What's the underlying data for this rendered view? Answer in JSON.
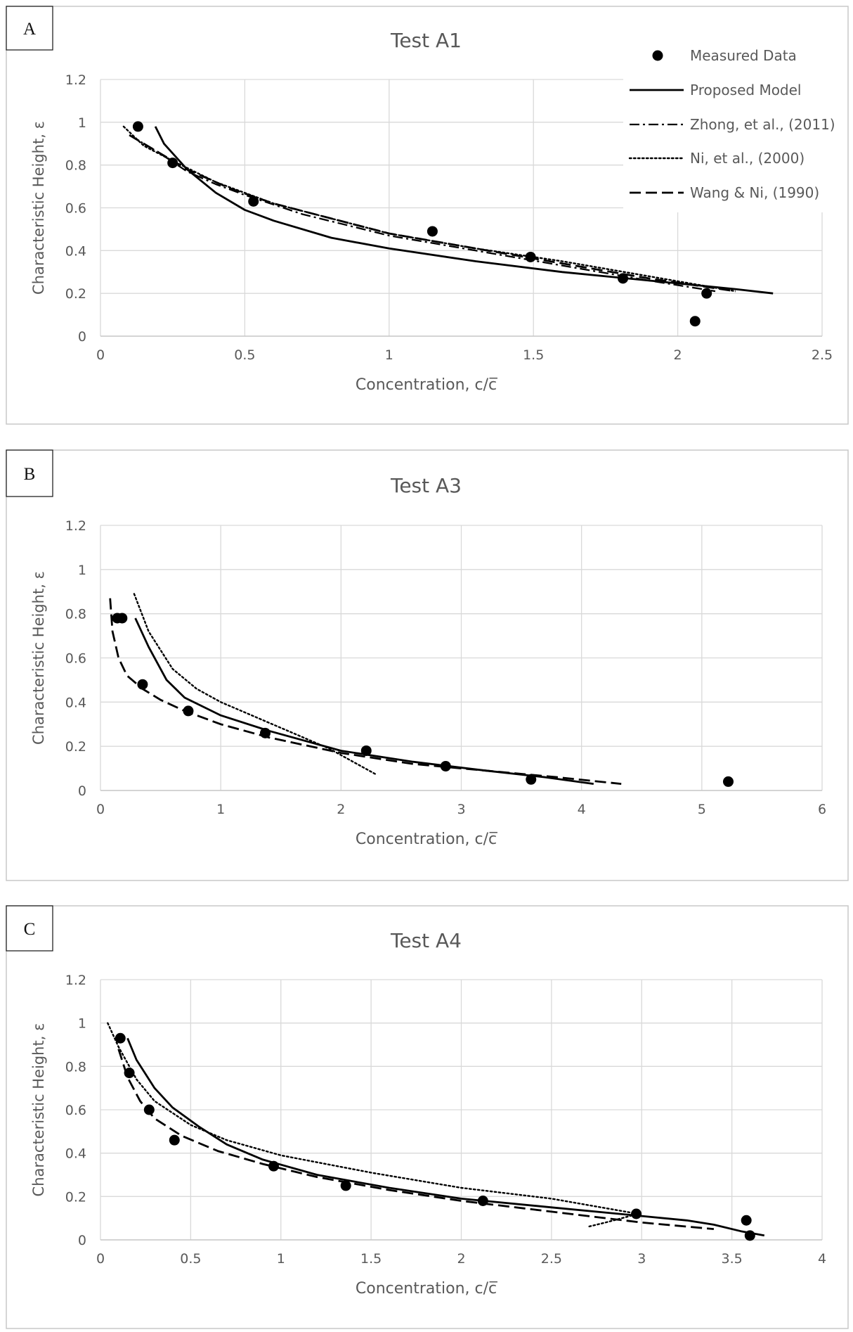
{
  "legend": [
    {
      "label": "Measured Data",
      "style": "marker"
    },
    {
      "label": "Proposed Model",
      "style": "solid"
    },
    {
      "label": "Zhong, et al., (2011)",
      "style": "dashdot"
    },
    {
      "label": "Ni, et al., (2000)",
      "style": "dotted"
    },
    {
      "label": "Wang & Ni, (1990)",
      "style": "dashed"
    }
  ],
  "chart_data": [
    {
      "panel_label": "A",
      "type": "line",
      "title": "Test A1",
      "xlabel": "Concentration, c/c̅",
      "ylabel": "Characteristic Height, ε",
      "xlim": [
        0,
        2.5
      ],
      "ylim": [
        0,
        1.2
      ],
      "xticks": [
        0,
        0.5,
        1,
        1.5,
        2,
        2.5
      ],
      "xtick_labels": [
        "0",
        "0.5",
        "1",
        "1.5",
        "2",
        "2.5"
      ],
      "yticks": [
        0,
        0.2,
        0.4,
        0.6,
        0.8,
        1,
        1.2
      ],
      "ytick_labels": [
        "0",
        "0.2",
        "0.4",
        "0.6",
        "0.8",
        "1",
        "1.2"
      ],
      "measured": {
        "x": [
          0.13,
          0.25,
          0.53,
          1.15,
          1.49,
          1.81,
          2.1,
          2.06
        ],
        "y": [
          0.98,
          0.81,
          0.63,
          0.49,
          0.37,
          0.27,
          0.2,
          0.07
        ]
      },
      "series": [
        {
          "name": "Proposed Model",
          "style": "solid",
          "x": [
            0.19,
            0.22,
            0.3,
            0.4,
            0.5,
            0.6,
            0.8,
            1.0,
            1.3,
            1.6,
            1.9,
            2.2,
            2.33
          ],
          "y": [
            0.98,
            0.9,
            0.78,
            0.67,
            0.59,
            0.54,
            0.46,
            0.41,
            0.35,
            0.3,
            0.26,
            0.22,
            0.2
          ]
        },
        {
          "name": "Zhong, et al., (2011)",
          "style": "dashdot",
          "x": [
            0.1,
            0.2,
            0.3,
            0.4,
            0.5,
            0.7,
            1.0,
            1.3,
            1.6,
            1.9,
            2.13
          ],
          "y": [
            0.94,
            0.86,
            0.77,
            0.71,
            0.66,
            0.57,
            0.47,
            0.4,
            0.33,
            0.26,
            0.21
          ]
        },
        {
          "name": "Ni, et al., (2000)",
          "style": "dotted",
          "x": [
            0.08,
            0.15,
            0.25,
            0.4,
            0.6,
            0.8,
            1.0,
            1.3,
            1.6,
            1.9,
            2.2
          ],
          "y": [
            0.98,
            0.89,
            0.82,
            0.72,
            0.62,
            0.55,
            0.48,
            0.41,
            0.35,
            0.28,
            0.21
          ]
        },
        {
          "name": "Wang & Ni, (1990)",
          "style": "dashed",
          "x": [
            0.1,
            0.2,
            0.3,
            0.45,
            0.6,
            0.8,
            1.0,
            1.3,
            1.6,
            1.9,
            2.2
          ],
          "y": [
            0.94,
            0.86,
            0.78,
            0.69,
            0.62,
            0.55,
            0.48,
            0.41,
            0.34,
            0.27,
            0.21
          ]
        }
      ]
    },
    {
      "panel_label": "B",
      "type": "line",
      "title": "Test A3",
      "xlabel": "Concentration, c/c̅",
      "ylabel": "Characteristic Height, ε",
      "xlim": [
        0,
        6
      ],
      "ylim": [
        0,
        1.2
      ],
      "xticks": [
        0,
        1,
        2,
        3,
        4,
        5,
        6
      ],
      "xtick_labels": [
        "0",
        "1",
        "2",
        "3",
        "4",
        "5",
        "6"
      ],
      "yticks": [
        0,
        0.2,
        0.4,
        0.6,
        0.8,
        1,
        1.2
      ],
      "ytick_labels": [
        "0",
        "0.2",
        "0.4",
        "0.6",
        "0.8",
        "1",
        "1.2"
      ],
      "measured": {
        "x": [
          0.14,
          0.18,
          0.35,
          0.73,
          1.37,
          2.21,
          2.87,
          3.58,
          5.22
        ],
        "y": [
          0.78,
          0.78,
          0.48,
          0.36,
          0.26,
          0.18,
          0.11,
          0.05,
          0.04
        ]
      },
      "series": [
        {
          "name": "Proposed Model",
          "style": "solid",
          "x": [
            0.29,
            0.4,
            0.55,
            0.7,
            1.0,
            1.4,
            2.0,
            2.6,
            3.2,
            3.7,
            4.1
          ],
          "y": [
            0.78,
            0.65,
            0.5,
            0.42,
            0.34,
            0.27,
            0.18,
            0.13,
            0.09,
            0.06,
            0.03
          ]
        },
        {
          "name": "Ni, et al., (2000)",
          "style": "dotted",
          "x": [
            0.28,
            0.4,
            0.6,
            0.8,
            1.0,
            1.3,
            1.6,
            1.9,
            2.1,
            2.3
          ],
          "y": [
            0.89,
            0.72,
            0.55,
            0.46,
            0.4,
            0.33,
            0.26,
            0.19,
            0.13,
            0.07
          ]
        },
        {
          "name": "Wang & Ni, (1990)",
          "style": "dashed",
          "x": [
            0.08,
            0.1,
            0.15,
            0.22,
            0.35,
            0.5,
            0.7,
            1.0,
            1.4,
            2.0,
            2.6,
            3.2,
            3.8,
            4.33
          ],
          "y": [
            0.87,
            0.72,
            0.6,
            0.52,
            0.46,
            0.41,
            0.36,
            0.3,
            0.24,
            0.17,
            0.12,
            0.09,
            0.06,
            0.03
          ]
        }
      ]
    },
    {
      "panel_label": "C",
      "type": "line",
      "title": "Test A4",
      "xlabel": "Concentration, c/c̅",
      "ylabel": "Characteristic Height, ε",
      "xlim": [
        0,
        4
      ],
      "ylim": [
        0,
        1.2
      ],
      "xticks": [
        0,
        0.5,
        1,
        1.5,
        2,
        2.5,
        3,
        3.5,
        4
      ],
      "xtick_labels": [
        "0",
        "0.5",
        "1",
        "1.5",
        "2",
        "2.5",
        "3",
        "3.5",
        "4"
      ],
      "yticks": [
        0,
        0.2,
        0.4,
        0.6,
        0.8,
        1,
        1.2
      ],
      "ytick_labels": [
        "0",
        "0.2",
        "0.4",
        "0.6",
        "0.8",
        "1",
        "1.2"
      ],
      "measured": {
        "x": [
          0.11,
          0.16,
          0.27,
          0.41,
          0.96,
          1.36,
          2.12,
          2.97,
          3.58,
          3.6
        ],
        "y": [
          0.93,
          0.77,
          0.6,
          0.46,
          0.34,
          0.25,
          0.18,
          0.12,
          0.09,
          0.02
        ]
      },
      "series": [
        {
          "name": "Proposed Model",
          "style": "solid",
          "x": [
            0.15,
            0.2,
            0.3,
            0.4,
            0.55,
            0.7,
            0.9,
            1.2,
            1.6,
            2.0,
            2.5,
            3.0,
            3.25,
            3.4,
            3.55,
            3.68
          ],
          "y": [
            0.93,
            0.83,
            0.7,
            0.61,
            0.52,
            0.44,
            0.37,
            0.3,
            0.24,
            0.19,
            0.15,
            0.11,
            0.09,
            0.07,
            0.04,
            0.02
          ]
        },
        {
          "name": "Ni, et al., (2000)",
          "style": "dotted",
          "x": [
            0.04,
            0.1,
            0.2,
            0.3,
            0.5,
            0.7,
            1.0,
            1.5,
            2.0,
            2.5,
            2.98,
            2.8,
            2.7
          ],
          "y": [
            1.0,
            0.89,
            0.74,
            0.64,
            0.53,
            0.46,
            0.39,
            0.31,
            0.24,
            0.19,
            0.12,
            0.08,
            0.06
          ]
        },
        {
          "name": "Wang & Ni, (1990)",
          "style": "dashed",
          "x": [
            0.1,
            0.15,
            0.22,
            0.3,
            0.45,
            0.65,
            0.9,
            1.2,
            1.6,
            2.0,
            2.5,
            3.0,
            3.4
          ],
          "y": [
            0.88,
            0.75,
            0.64,
            0.56,
            0.48,
            0.41,
            0.35,
            0.29,
            0.23,
            0.18,
            0.13,
            0.08,
            0.05
          ]
        }
      ]
    }
  ]
}
